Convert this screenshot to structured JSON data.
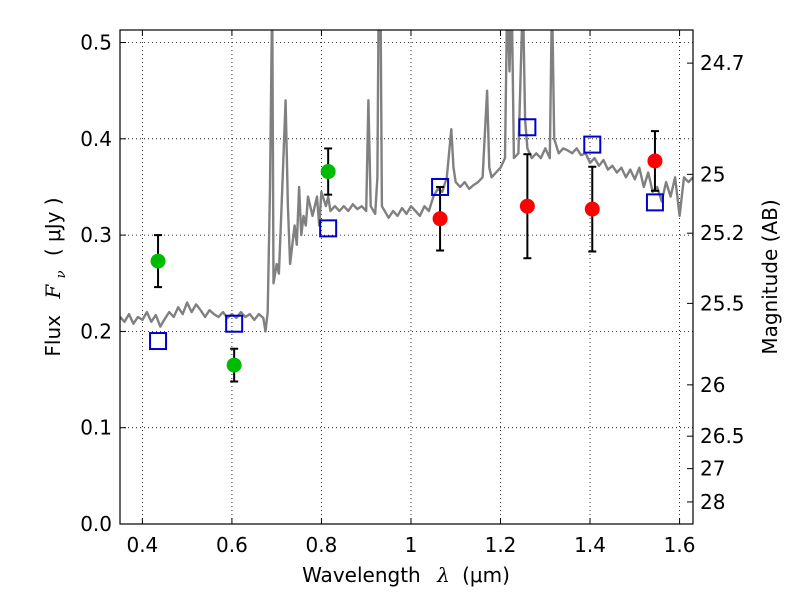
{
  "chart_data": {
    "type": "scatter",
    "xlabel_prefix": "Wavelength",
    "xlabel_symbol": "λ",
    "xlabel_unit": "(μm)",
    "ylabel_prefix": "Flux",
    "ylabel_symbol": "F",
    "ylabel_subscript": "ν",
    "ylabel_unit": "( μJy )",
    "y2label": "Magnitude (AB)",
    "xlim": [
      0.35,
      1.63
    ],
    "ylim": [
      0.0,
      0.513
    ],
    "grid": true,
    "x_ticks": [
      0.4,
      0.6,
      0.8,
      1.0,
      1.2,
      1.4,
      1.6
    ],
    "x_tick_labels": [
      "0.4",
      "0.6",
      "0.8",
      "1",
      "1.2",
      "1.4",
      "1.6"
    ],
    "y_ticks": [
      0.0,
      0.1,
      0.2,
      0.3,
      0.4,
      0.5
    ],
    "y_tick_labels": [
      "0.0",
      "0.1",
      "0.2",
      "0.3",
      "0.4",
      "0.5"
    ],
    "mag_ticks": [
      {
        "label": "24.7",
        "flux": 0.4786
      },
      {
        "label": "25",
        "flux": 0.3631
      },
      {
        "label": "25.2",
        "flux": 0.302
      },
      {
        "label": "25.5",
        "flux": 0.2291
      },
      {
        "label": "26",
        "flux": 0.1445
      },
      {
        "label": "26.5",
        "flux": 0.0912
      },
      {
        "label": "27",
        "flux": 0.0575
      },
      {
        "label": "28",
        "flux": 0.0229
      }
    ],
    "series": [
      {
        "kind": "line",
        "color": "#808080",
        "points": [
          [
            0.35,
            0.215
          ],
          [
            0.36,
            0.21
          ],
          [
            0.37,
            0.218
          ],
          [
            0.38,
            0.208
          ],
          [
            0.39,
            0.215
          ],
          [
            0.4,
            0.212
          ],
          [
            0.41,
            0.22
          ],
          [
            0.42,
            0.21
          ],
          [
            0.43,
            0.217
          ],
          [
            0.44,
            0.205
          ],
          [
            0.45,
            0.213
          ],
          [
            0.46,
            0.22
          ],
          [
            0.47,
            0.215
          ],
          [
            0.48,
            0.225
          ],
          [
            0.49,
            0.218
          ],
          [
            0.5,
            0.23
          ],
          [
            0.51,
            0.22
          ],
          [
            0.52,
            0.228
          ],
          [
            0.53,
            0.222
          ],
          [
            0.54,
            0.215
          ],
          [
            0.55,
            0.222
          ],
          [
            0.56,
            0.218
          ],
          [
            0.57,
            0.215
          ],
          [
            0.58,
            0.22
          ],
          [
            0.59,
            0.214
          ],
          [
            0.6,
            0.218
          ],
          [
            0.61,
            0.214
          ],
          [
            0.62,
            0.22
          ],
          [
            0.63,
            0.215
          ],
          [
            0.64,
            0.218
          ],
          [
            0.65,
            0.212
          ],
          [
            0.66,
            0.218
          ],
          [
            0.67,
            0.214
          ],
          [
            0.675,
            0.2
          ],
          [
            0.68,
            0.22
          ],
          [
            0.685,
            0.35
          ],
          [
            0.69,
            0.55
          ],
          [
            0.693,
            0.25
          ],
          [
            0.7,
            0.27
          ],
          [
            0.705,
            0.26
          ],
          [
            0.71,
            0.32
          ],
          [
            0.72,
            0.44
          ],
          [
            0.725,
            0.33
          ],
          [
            0.73,
            0.27
          ],
          [
            0.74,
            0.31
          ],
          [
            0.745,
            0.29
          ],
          [
            0.75,
            0.35
          ],
          [
            0.755,
            0.3
          ],
          [
            0.76,
            0.32
          ],
          [
            0.765,
            0.31
          ],
          [
            0.77,
            0.34
          ],
          [
            0.78,
            0.32
          ],
          [
            0.79,
            0.34
          ],
          [
            0.795,
            0.31
          ],
          [
            0.8,
            0.345
          ],
          [
            0.81,
            0.33
          ],
          [
            0.815,
            0.34
          ],
          [
            0.82,
            0.325
          ],
          [
            0.83,
            0.33
          ],
          [
            0.84,
            0.325
          ],
          [
            0.85,
            0.33
          ],
          [
            0.86,
            0.325
          ],
          [
            0.87,
            0.332
          ],
          [
            0.88,
            0.327
          ],
          [
            0.89,
            0.33
          ],
          [
            0.9,
            0.325
          ],
          [
            0.905,
            0.44
          ],
          [
            0.91,
            0.33
          ],
          [
            0.92,
            0.322
          ],
          [
            0.925,
            0.36
          ],
          [
            0.928,
            0.55
          ],
          [
            0.932,
            0.55
          ],
          [
            0.935,
            0.33
          ],
          [
            0.95,
            0.318
          ],
          [
            0.96,
            0.325
          ],
          [
            0.97,
            0.32
          ],
          [
            0.98,
            0.328
          ],
          [
            0.99,
            0.322
          ],
          [
            1.0,
            0.33
          ],
          [
            1.01,
            0.325
          ],
          [
            1.02,
            0.32
          ],
          [
            1.03,
            0.33
          ],
          [
            1.04,
            0.325
          ],
          [
            1.05,
            0.34
          ],
          [
            1.06,
            0.348
          ],
          [
            1.07,
            0.345
          ],
          [
            1.08,
            0.36
          ],
          [
            1.09,
            0.41
          ],
          [
            1.095,
            0.37
          ],
          [
            1.1,
            0.355
          ],
          [
            1.11,
            0.35
          ],
          [
            1.12,
            0.355
          ],
          [
            1.13,
            0.348
          ],
          [
            1.14,
            0.352
          ],
          [
            1.15,
            0.355
          ],
          [
            1.16,
            0.36
          ],
          [
            1.17,
            0.45
          ],
          [
            1.175,
            0.37
          ],
          [
            1.18,
            0.36
          ],
          [
            1.19,
            0.365
          ],
          [
            1.2,
            0.37
          ],
          [
            1.21,
            0.38
          ],
          [
            1.215,
            0.55
          ],
          [
            1.22,
            0.47
          ],
          [
            1.225,
            0.55
          ],
          [
            1.23,
            0.38
          ],
          [
            1.24,
            0.385
          ],
          [
            1.25,
            0.55
          ],
          [
            1.255,
            0.42
          ],
          [
            1.26,
            0.39
          ],
          [
            1.27,
            0.38
          ],
          [
            1.28,
            0.385
          ],
          [
            1.29,
            0.38
          ],
          [
            1.3,
            0.39
          ],
          [
            1.31,
            0.38
          ],
          [
            1.315,
            0.55
          ],
          [
            1.32,
            0.4
          ],
          [
            1.33,
            0.385
          ],
          [
            1.34,
            0.39
          ],
          [
            1.35,
            0.388
          ],
          [
            1.36,
            0.385
          ],
          [
            1.37,
            0.39
          ],
          [
            1.38,
            0.383
          ],
          [
            1.39,
            0.385
          ],
          [
            1.4,
            0.375
          ],
          [
            1.41,
            0.38
          ],
          [
            1.42,
            0.372
          ],
          [
            1.43,
            0.378
          ],
          [
            1.44,
            0.368
          ],
          [
            1.45,
            0.372
          ],
          [
            1.46,
            0.365
          ],
          [
            1.47,
            0.37
          ],
          [
            1.48,
            0.36
          ],
          [
            1.49,
            0.368
          ],
          [
            1.5,
            0.358
          ],
          [
            1.51,
            0.37
          ],
          [
            1.52,
            0.35
          ],
          [
            1.53,
            0.365
          ],
          [
            1.54,
            0.345
          ],
          [
            1.55,
            0.35
          ],
          [
            1.56,
            0.335
          ],
          [
            1.57,
            0.355
          ],
          [
            1.58,
            0.34
          ],
          [
            1.59,
            0.36
          ],
          [
            1.6,
            0.32
          ],
          [
            1.61,
            0.36
          ],
          [
            1.62,
            0.355
          ],
          [
            1.63,
            0.36
          ]
        ]
      },
      {
        "kind": "points",
        "marker": "circle",
        "color": "#00bb00",
        "x": [
          0.435,
          0.605,
          0.815
        ],
        "y": [
          0.273,
          0.165,
          0.366
        ],
        "err": [
          0.027,
          0.017,
          0.024
        ]
      },
      {
        "kind": "points",
        "marker": "circle",
        "color": "#ff0000",
        "x": [
          1.065,
          1.26,
          1.405,
          1.545
        ],
        "y": [
          0.317,
          0.33,
          0.327,
          0.377
        ],
        "err": [
          0.033,
          0.054,
          0.044,
          0.031
        ]
      },
      {
        "kind": "points",
        "marker": "square",
        "color": "#0000cc",
        "x": [
          0.435,
          0.605,
          0.815,
          1.065,
          1.26,
          1.405,
          1.545
        ],
        "y": [
          0.19,
          0.208,
          0.307,
          0.35,
          0.412,
          0.394,
          0.334
        ]
      }
    ]
  }
}
